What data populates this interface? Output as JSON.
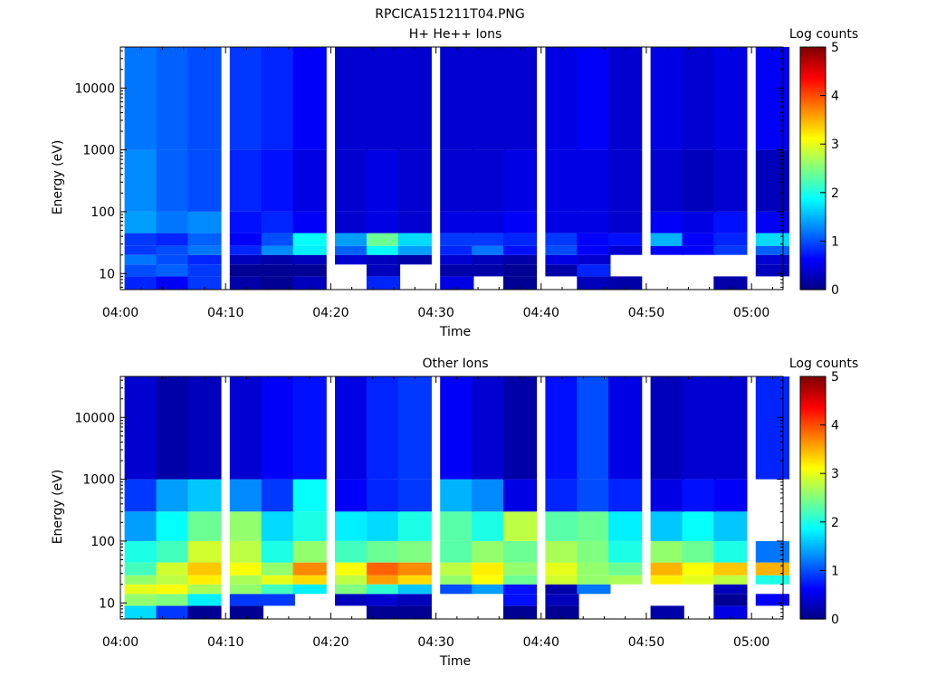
{
  "figure_title": "RPCICA151211T04.PNG",
  "colors": {
    "colormap_stops": [
      "#00007f",
      "#0000ff",
      "#0080ff",
      "#00ffff",
      "#80ff80",
      "#ffff00",
      "#ff8000",
      "#ff0000",
      "#7f0000"
    ]
  },
  "chart_data": [
    {
      "type": "heatmap",
      "title": "H+ He++ Ions",
      "xlabel": "Time",
      "ylabel": "Energy (eV)",
      "y_scale": "log",
      "ylim": [
        5.5,
        46000
      ],
      "xlim": [
        "04:00",
        "05:03"
      ],
      "x_ticks": [
        "04:00",
        "04:10",
        "04:20",
        "04:30",
        "04:40",
        "04:50",
        "05:00"
      ],
      "y_ticks": [
        "10",
        "100",
        "1000",
        "10000"
      ],
      "colorbar": {
        "label": "Log counts",
        "range": [
          0,
          5
        ],
        "ticks": [
          "0",
          "1",
          "2",
          "3",
          "4",
          "5"
        ]
      },
      "time_bins": [
        "04:02",
        "04:05",
        "04:08",
        "04:12",
        "04:15",
        "04:18",
        "04:22",
        "04:25",
        "04:28",
        "04:32",
        "04:35",
        "04:38",
        "04:42",
        "04:45",
        "04:48",
        "04:52",
        "04:55",
        "04:58",
        "05:02"
      ],
      "energy_ranges_eV": [
        {
          "range": [
            5.5,
            9
          ],
          "levels": [
            0.8,
            0.6,
            0.9,
            0.2,
            0.1,
            0.3,
            null,
            0.8,
            null,
            0.5,
            null,
            0.1,
            null,
            0.3,
            0.2,
            null,
            null,
            0.2,
            null
          ]
        },
        {
          "range": [
            9,
            14
          ],
          "levels": [
            1.0,
            1.1,
            0.9,
            0.1,
            0.1,
            0.1,
            null,
            0.3,
            null,
            0.2,
            0.2,
            0.1,
            0.2,
            0.8,
            null,
            null,
            null,
            null,
            0.3
          ]
        },
        {
          "range": [
            14,
            20
          ],
          "levels": [
            1.2,
            1.0,
            0.8,
            0.3,
            0.2,
            0.3,
            0.4,
            0.3,
            0.2,
            0.4,
            0.3,
            0.2,
            0.5,
            0.4,
            null,
            null,
            null,
            null,
            0.4
          ]
        },
        {
          "range": [
            20,
            28
          ],
          "levels": [
            0.9,
            1.0,
            1.2,
            0.8,
            1.3,
            1.8,
            1.1,
            1.9,
            1.4,
            0.8,
            1.2,
            0.7,
            1.0,
            0.6,
            0.4,
            0.6,
            0.6,
            0.9,
            1.1
          ]
        },
        {
          "range": [
            28,
            45
          ],
          "levels": [
            0.9,
            0.8,
            1.1,
            0.6,
            1.0,
            1.9,
            1.4,
            2.4,
            1.7,
            0.9,
            0.9,
            0.8,
            0.9,
            0.6,
            0.7,
            1.5,
            0.6,
            0.8,
            1.7
          ]
        },
        {
          "range": [
            45,
            100
          ],
          "levels": [
            1.4,
            1.2,
            1.3,
            0.7,
            0.8,
            0.6,
            0.4,
            0.5,
            0.4,
            0.5,
            0.5,
            0.6,
            0.5,
            0.5,
            0.4,
            0.6,
            0.5,
            0.7,
            0.6
          ]
        },
        {
          "range": [
            100,
            1000
          ],
          "levels": [
            1.3,
            1.1,
            1.0,
            0.8,
            0.7,
            0.5,
            0.4,
            0.5,
            0.4,
            0.4,
            0.4,
            0.5,
            0.5,
            0.5,
            0.4,
            0.4,
            0.3,
            0.4,
            0.3
          ]
        },
        {
          "range": [
            1000,
            46000
          ],
          "levels": [
            1.2,
            1.1,
            1.0,
            0.9,
            0.8,
            0.6,
            0.4,
            0.4,
            0.4,
            0.4,
            0.4,
            0.4,
            0.5,
            0.6,
            0.4,
            0.5,
            0.4,
            0.5,
            0.6
          ]
        }
      ]
    },
    {
      "type": "heatmap",
      "title": "Other Ions",
      "xlabel": "Time",
      "ylabel": "Energy (eV)",
      "y_scale": "log",
      "ylim": [
        5.5,
        46000
      ],
      "xlim": [
        "04:00",
        "05:03"
      ],
      "x_ticks": [
        "04:00",
        "04:10",
        "04:20",
        "04:30",
        "04:40",
        "04:50",
        "05:00"
      ],
      "y_ticks": [
        "10",
        "100",
        "1000",
        "10000"
      ],
      "colorbar": {
        "label": "Log counts",
        "range": [
          0,
          5
        ],
        "ticks": [
          "0",
          "1",
          "2",
          "3",
          "4",
          "5"
        ]
      },
      "time_bins": [
        "04:02",
        "04:05",
        "04:08",
        "04:12",
        "04:15",
        "04:18",
        "04:22",
        "04:25",
        "04:28",
        "04:32",
        "04:35",
        "04:38",
        "04:42",
        "04:45",
        "04:48",
        "04:52",
        "04:55",
        "04:58",
        "05:02"
      ],
      "energy_ranges_eV": [
        {
          "range": [
            5.5,
            9
          ],
          "levels": [
            1.7,
            0.9,
            0.1,
            0.1,
            null,
            null,
            null,
            0.1,
            0.1,
            null,
            null,
            0.1,
            0.1,
            null,
            null,
            0.2,
            null,
            0.5,
            null
          ]
        },
        {
          "range": [
            9,
            14
          ],
          "levels": [
            2.6,
            2.5,
            1.8,
            0.9,
            0.9,
            null,
            0.3,
            0.4,
            0.3,
            null,
            null,
            0.7,
            0.3,
            null,
            null,
            null,
            null,
            0.1,
            0.6
          ]
        },
        {
          "range": [
            14,
            20
          ],
          "levels": [
            3.0,
            3.1,
            2.7,
            2.6,
            2.2,
            1.8,
            2.5,
            2.1,
            1.6,
            1.0,
            1.4,
            0.7,
            0.2,
            1.2,
            null,
            null,
            null,
            0.3,
            null
          ]
        },
        {
          "range": [
            20,
            28
          ],
          "levels": [
            2.6,
            2.8,
            3.2,
            2.7,
            3.0,
            3.3,
            2.8,
            3.6,
            3.3,
            2.6,
            3.1,
            2.4,
            2.9,
            2.6,
            2.7,
            3.2,
            3.0,
            2.8,
            2.0
          ]
        },
        {
          "range": [
            28,
            45
          ],
          "levels": [
            2.2,
            2.9,
            3.4,
            3.1,
            2.6,
            3.7,
            3.1,
            3.9,
            3.7,
            2.8,
            3.2,
            2.6,
            3.0,
            2.6,
            2.4,
            3.5,
            3.1,
            3.4,
            3.5
          ]
        },
        {
          "range": [
            45,
            100
          ],
          "levels": [
            2.0,
            2.2,
            2.9,
            2.8,
            2.0,
            2.6,
            2.2,
            2.4,
            2.5,
            2.3,
            2.6,
            2.4,
            2.7,
            2.5,
            2.0,
            2.6,
            2.4,
            2.0,
            1.2
          ]
        },
        {
          "range": [
            100,
            300
          ],
          "levels": [
            1.4,
            1.9,
            2.4,
            2.6,
            1.7,
            2.0,
            1.8,
            1.7,
            2.0,
            2.3,
            2.0,
            2.8,
            2.3,
            2.4,
            1.8,
            1.6,
            1.9,
            1.6,
            null
          ]
        },
        {
          "range": [
            300,
            1000
          ],
          "levels": [
            0.9,
            1.4,
            1.6,
            1.3,
            0.9,
            1.9,
            0.6,
            0.8,
            0.9,
            1.5,
            1.3,
            0.5,
            0.8,
            1.0,
            0.8,
            0.5,
            0.7,
            0.6,
            null
          ]
        },
        {
          "range": [
            1000,
            46000
          ],
          "levels": [
            0.4,
            0.2,
            0.3,
            0.4,
            0.6,
            0.7,
            0.5,
            0.8,
            0.9,
            0.6,
            0.4,
            0.2,
            0.7,
            1.0,
            0.5,
            0.3,
            0.4,
            0.4,
            0.8
          ]
        }
      ]
    }
  ]
}
